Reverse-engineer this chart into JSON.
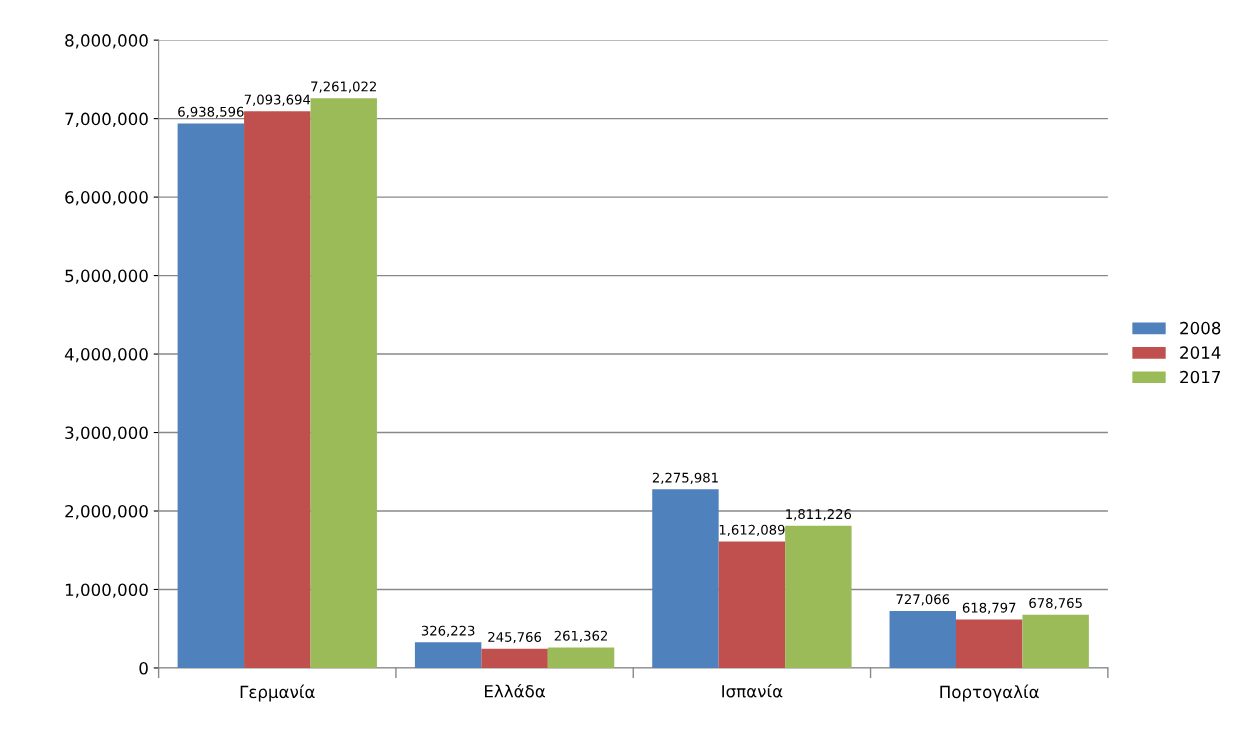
{
  "chart_data": {
    "type": "bar",
    "categories": [
      "Γερμανία",
      "Ελλάδα",
      "Ισπανία",
      "Πορτογαλία"
    ],
    "series": [
      {
        "name": "2008",
        "color": "#4f81bd",
        "values": [
          6938596,
          326223,
          2275981,
          727066
        ],
        "value_labels": [
          "6,938,596",
          "326,223",
          "2,275,981",
          "727,066"
        ]
      },
      {
        "name": "2014",
        "color": "#c0504d",
        "values": [
          7093694,
          245766,
          1612089,
          618797
        ],
        "value_labels": [
          "7,093,694",
          "245,766",
          "1,612,089",
          "618,797"
        ]
      },
      {
        "name": "2017",
        "color": "#9bbb59",
        "values": [
          7261022,
          261362,
          1811226,
          678765
        ],
        "value_labels": [
          "7,261,022",
          "261,362",
          "1,811,226",
          "678,765"
        ]
      }
    ],
    "ylim": [
      0,
      8000000
    ],
    "yticks": [
      {
        "value": 0,
        "label": "0"
      },
      {
        "value": 1000000,
        "label": "1,000,000"
      },
      {
        "value": 2000000,
        "label": "2,000,000"
      },
      {
        "value": 3000000,
        "label": "3,000,000"
      },
      {
        "value": 4000000,
        "label": "4,000,000"
      },
      {
        "value": 5000000,
        "label": "5,000,000"
      },
      {
        "value": 6000000,
        "label": "6,000,000"
      },
      {
        "value": 7000000,
        "label": "7,000,000"
      },
      {
        "value": 8000000,
        "label": "8,000,000"
      }
    ],
    "grid": "y",
    "legend": "right"
  }
}
